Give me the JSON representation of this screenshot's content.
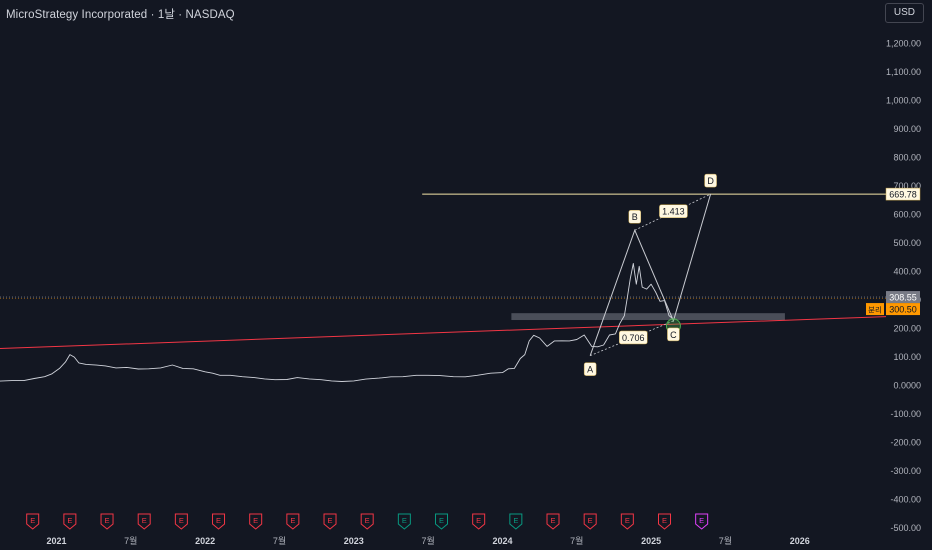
{
  "header": {
    "title": "MicroStrategy Incorporated · 1날 · NASDAQ",
    "currency_label": "USD"
  },
  "colors": {
    "background": "#131722",
    "price_line": "#d1d4dc",
    "trendline": "#f23645",
    "pattern_line": "#c9cbd1",
    "horizontal_target": "#f5e6a8",
    "zone": "#787b86",
    "earnings_red": "#f23645",
    "earnings_green": "#089981",
    "earnings_purple": "#e040fb",
    "last_price_bg": "#787b86",
    "alt_price_bg": "#ff9800"
  },
  "chart_data": {
    "type": "line",
    "title": "MicroStrategy Incorporated · 1날 · NASDAQ",
    "ylim": [
      -520,
      1260
    ],
    "y_ticks": [
      1200,
      1100,
      1000,
      900,
      800,
      700,
      600,
      500,
      400,
      300,
      200,
      100,
      0,
      -100,
      -200,
      -300,
      -400,
      -500
    ],
    "y_tick_labels": [
      "1,200.00",
      "1,100.00",
      "1,000.00",
      "900.00",
      "800.00",
      "700.00",
      "600.00",
      "500.00",
      "400.00",
      "300.00",
      "200.00",
      "100.00",
      "0.0000",
      "-100.00",
      "-200.00",
      "-300.00",
      "-400.00",
      "-500.00"
    ],
    "x_ticks": [
      {
        "t": 2021.0,
        "label": "2021",
        "bold": true
      },
      {
        "t": 2021.5,
        "label": "7월",
        "bold": false
      },
      {
        "t": 2022.0,
        "label": "2022",
        "bold": true
      },
      {
        "t": 2022.5,
        "label": "7월",
        "bold": false
      },
      {
        "t": 2023.0,
        "label": "2023",
        "bold": true
      },
      {
        "t": 2023.5,
        "label": "7월",
        "bold": false
      },
      {
        "t": 2024.0,
        "label": "2024",
        "bold": true
      },
      {
        "t": 2024.5,
        "label": "7월",
        "bold": false
      },
      {
        "t": 2025.0,
        "label": "2025",
        "bold": true
      },
      {
        "t": 2025.5,
        "label": "7월",
        "bold": false
      },
      {
        "t": 2026.0,
        "label": "2026",
        "bold": true
      }
    ],
    "xlim": [
      2020.62,
      2026.58
    ],
    "series": [
      {
        "x": [
          2020.62,
          2020.7,
          2020.78,
          2020.85,
          2020.92,
          2020.97,
          2021.02,
          2021.06,
          2021.09,
          2021.12,
          2021.15,
          2021.2,
          2021.27,
          2021.33,
          2021.4,
          2021.47,
          2021.55,
          2021.62,
          2021.7,
          2021.78,
          2021.85,
          2021.92,
          2022.0,
          2022.05,
          2022.1,
          2022.17,
          2022.25,
          2022.33,
          2022.4,
          2022.47,
          2022.55,
          2022.62,
          2022.7,
          2022.78,
          2022.85,
          2022.92,
          2023.0,
          2023.08,
          2023.17,
          2023.25,
          2023.33,
          2023.42,
          2023.5,
          2023.58,
          2023.67,
          2023.75,
          2023.83,
          2023.92,
          2024.0,
          2024.04,
          2024.08,
          2024.12,
          2024.15,
          2024.18,
          2024.21,
          2024.25,
          2024.3,
          2024.35,
          2024.4,
          2024.45,
          2024.5,
          2024.55,
          2024.6,
          2024.64,
          2024.68,
          2024.72,
          2024.76,
          2024.79,
          2024.82,
          2024.84,
          2024.86,
          2024.88,
          2024.9,
          2024.92,
          2024.94,
          2024.97,
          2025.0,
          2025.03,
          2025.06,
          2025.09,
          2025.12,
          2025.15
        ],
        "values": [
          14,
          15,
          16,
          22,
          30,
          38,
          60,
          78,
          110,
          95,
          80,
          70,
          72,
          65,
          62,
          60,
          58,
          55,
          62,
          68,
          60,
          55,
          48,
          40,
          35,
          33,
          30,
          25,
          22,
          18,
          20,
          25,
          22,
          18,
          15,
          12,
          15,
          20,
          25,
          28,
          30,
          33,
          35,
          32,
          30,
          28,
          35,
          40,
          45,
          55,
          60,
          90,
          110,
          150,
          180,
          160,
          140,
          150,
          160,
          150,
          165,
          170,
          140,
          130,
          145,
          170,
          185,
          210,
          250,
          300,
          380,
          420,
          360,
          410,
          350,
          330,
          360,
          320,
          300,
          290,
          250,
          225
        ]
      }
    ],
    "annotations": {
      "trendline": {
        "x1": 2020.62,
        "y1": 128,
        "x2": 2026.58,
        "y2": 240
      },
      "pattern_points": [
        {
          "label": "A",
          "x": 2024.59,
          "y": 103
        },
        {
          "label": "B",
          "x": 2024.89,
          "y": 543
        },
        {
          "label": "C",
          "x": 2025.15,
          "y": 225
        },
        {
          "label": "D",
          "x": 2025.4,
          "y": 669.78
        }
      ],
      "ratios": [
        {
          "text": "0.706",
          "x": 2024.88,
          "y": 165
        },
        {
          "text": "1.413",
          "x": 2025.15,
          "y": 608
        }
      ],
      "target_line": {
        "value": 669.78,
        "x_start": 2023.46,
        "label": "669.78"
      },
      "zone": {
        "x1": 2024.06,
        "x2": 2025.9,
        "y_low": 228,
        "y_high": 252
      },
      "last_price": {
        "value": 308.55,
        "label": "308.55"
      },
      "alt_price": {
        "value": 300.5,
        "label": "300.50",
        "tag": "분리"
      },
      "dotted_level": 303
    },
    "earnings_markers": [
      {
        "t": 2020.84,
        "color": "red",
        "label": "E"
      },
      {
        "t": 2021.09,
        "color": "red",
        "label": "E"
      },
      {
        "t": 2021.34,
        "color": "red",
        "label": "E"
      },
      {
        "t": 2021.59,
        "color": "red",
        "label": "E"
      },
      {
        "t": 2021.84,
        "color": "red",
        "label": "E"
      },
      {
        "t": 2022.09,
        "color": "red",
        "label": "E"
      },
      {
        "t": 2022.34,
        "color": "red",
        "label": "E"
      },
      {
        "t": 2022.59,
        "color": "red",
        "label": "E"
      },
      {
        "t": 2022.84,
        "color": "red",
        "label": "E"
      },
      {
        "t": 2023.09,
        "color": "red",
        "label": "E"
      },
      {
        "t": 2023.34,
        "color": "green",
        "label": "E"
      },
      {
        "t": 2023.59,
        "color": "green",
        "label": "E"
      },
      {
        "t": 2023.84,
        "color": "red",
        "label": "E"
      },
      {
        "t": 2024.09,
        "color": "green",
        "label": "E"
      },
      {
        "t": 2024.34,
        "color": "red",
        "label": "E"
      },
      {
        "t": 2024.59,
        "color": "red",
        "label": "E"
      },
      {
        "t": 2024.84,
        "color": "red",
        "label": "E"
      },
      {
        "t": 2025.09,
        "color": "red",
        "label": "E"
      },
      {
        "t": 2025.34,
        "color": "purple",
        "label": "E"
      }
    ]
  }
}
